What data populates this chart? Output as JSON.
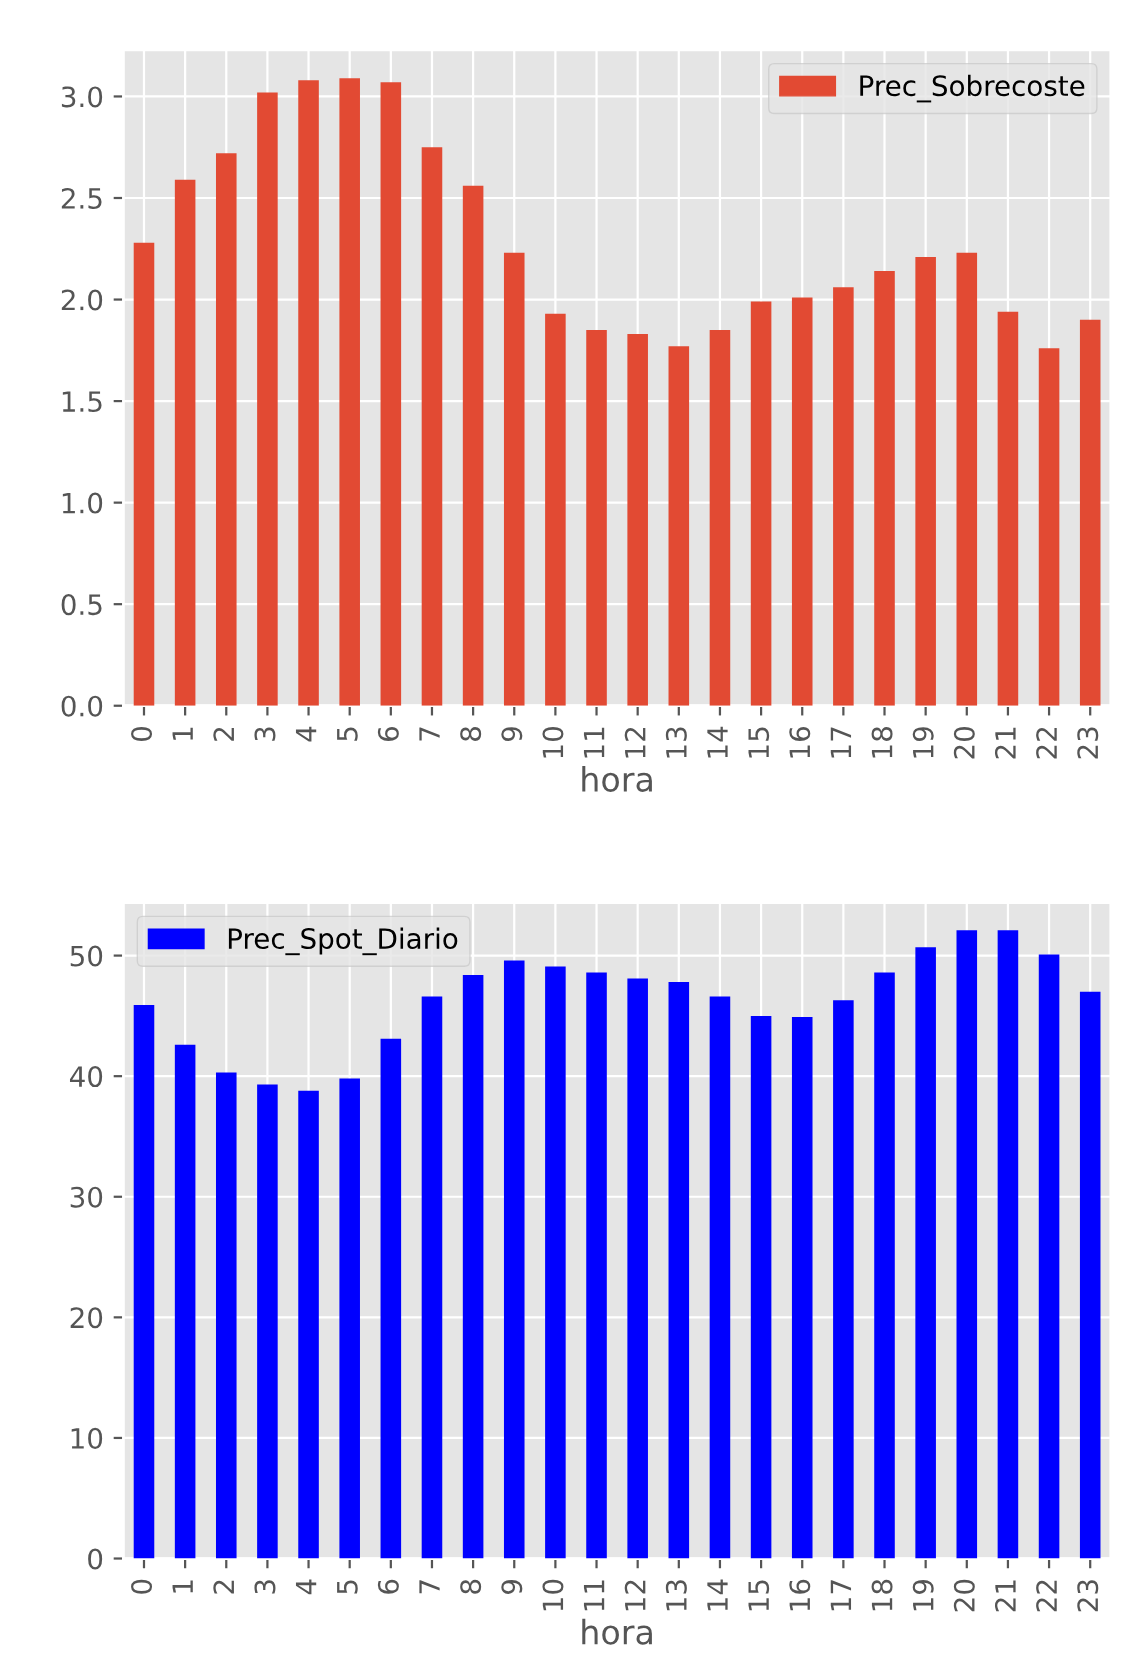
{
  "chart_data": [
    {
      "type": "bar",
      "xlabel": "hora",
      "categories": [
        "0",
        "1",
        "2",
        "3",
        "4",
        "5",
        "6",
        "7",
        "8",
        "9",
        "10",
        "11",
        "12",
        "13",
        "14",
        "15",
        "16",
        "17",
        "18",
        "19",
        "20",
        "21",
        "22",
        "23"
      ],
      "series": [
        {
          "name": "Prec_Sobrecoste",
          "color": "#e24a33",
          "values": [
            2.28,
            2.59,
            2.72,
            3.02,
            3.08,
            3.09,
            3.07,
            2.75,
            2.56,
            2.23,
            1.93,
            1.85,
            1.83,
            1.77,
            1.85,
            1.99,
            2.01,
            2.06,
            2.14,
            2.21,
            2.23,
            1.94,
            1.76,
            1.9
          ]
        }
      ],
      "ylim": [
        0,
        3.23
      ],
      "yticks": [
        {
          "value": 0,
          "label": "0.0"
        },
        {
          "value": 0.5,
          "label": "0.5"
        },
        {
          "value": 1,
          "label": "1.0"
        },
        {
          "value": 1.5,
          "label": "1.5"
        },
        {
          "value": 2,
          "label": "2.0"
        },
        {
          "value": 2.5,
          "label": "2.5"
        },
        {
          "value": 3,
          "label": "3.0"
        }
      ],
      "grid": true,
      "legend": "top right"
    },
    {
      "type": "bar",
      "xlabel": "hora",
      "categories": [
        "0",
        "1",
        "2",
        "3",
        "4",
        "5",
        "6",
        "7",
        "8",
        "9",
        "10",
        "11",
        "12",
        "13",
        "14",
        "15",
        "16",
        "17",
        "18",
        "19",
        "20",
        "21",
        "22",
        "23"
      ],
      "series": [
        {
          "name": "Prec_Spot_Diario",
          "color": "#0000ff",
          "values": [
            45.9,
            42.6,
            40.3,
            39.3,
            38.8,
            39.8,
            43.1,
            46.6,
            48.4,
            49.6,
            49.1,
            48.6,
            48.1,
            47.8,
            46.6,
            45.0,
            44.9,
            46.3,
            48.6,
            50.7,
            52.1,
            52.1,
            50.1,
            47.0
          ]
        }
      ],
      "ylim": [
        0,
        54.4
      ],
      "yticks": [
        0,
        10,
        20,
        30,
        40,
        50
      ],
      "grid": true,
      "legend": "top left"
    }
  ]
}
